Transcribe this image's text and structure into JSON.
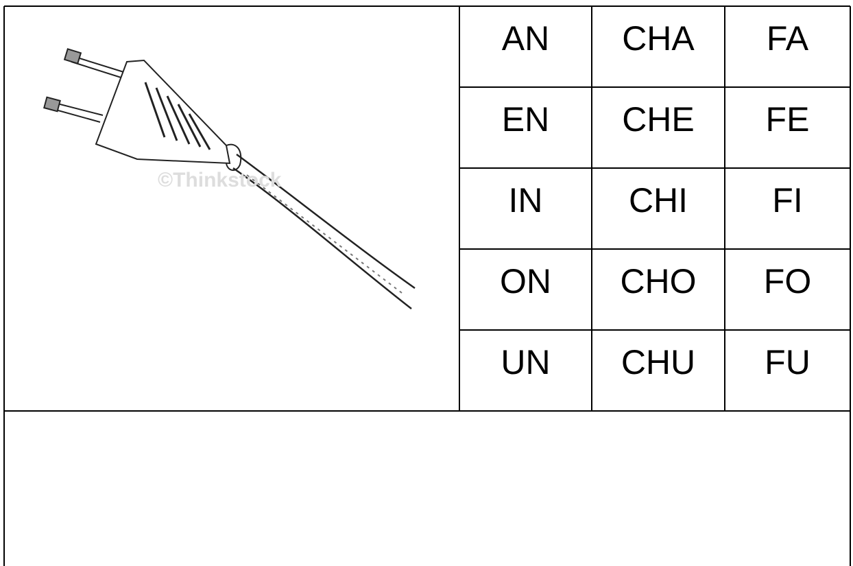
{
  "table": {
    "rows": [
      [
        "AN",
        "CHA",
        "FA"
      ],
      [
        "EN",
        "CHE",
        "FE"
      ],
      [
        "IN",
        "CHI",
        "FI"
      ],
      [
        "ON",
        "CHO",
        "FO"
      ],
      [
        "UN",
        "CHU",
        "FU"
      ]
    ]
  },
  "watermark": "©Thinkstock"
}
